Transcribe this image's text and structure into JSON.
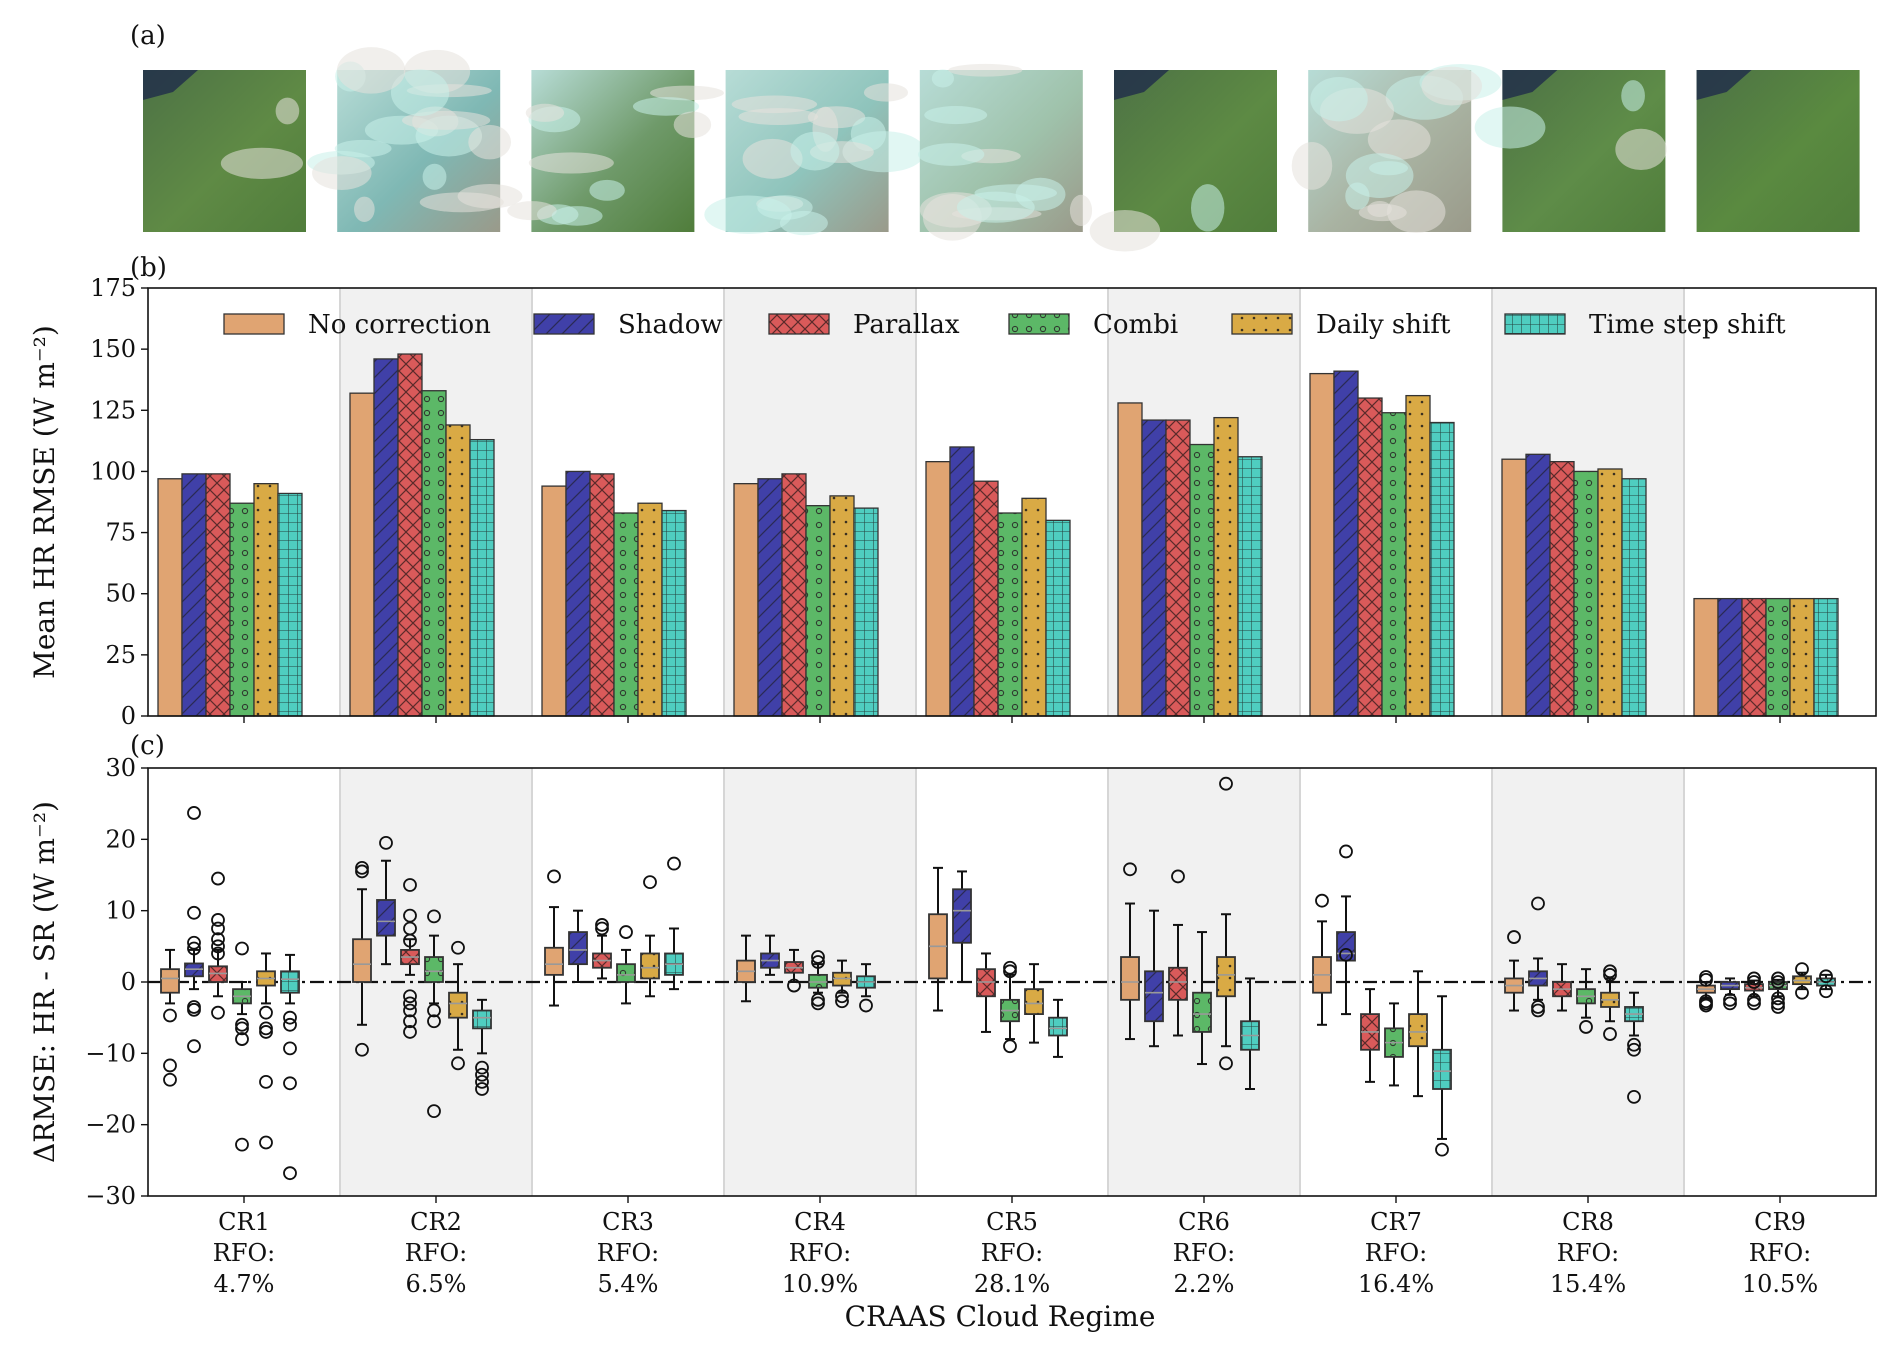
{
  "panels": {
    "a": "(a)",
    "b": "(b)",
    "c": "(c)"
  },
  "thumbnails": [
    {
      "id": "CR1",
      "base": "#5f8a45",
      "cloud": 0.1
    },
    {
      "id": "CR2",
      "base": "#7fb8b4",
      "cloud": 0.75
    },
    {
      "id": "CR3",
      "base": "#6f9a6a",
      "cloud": 0.45
    },
    {
      "id": "CR4",
      "base": "#8fc4bc",
      "cloud": 0.65
    },
    {
      "id": "CR5",
      "base": "#9fc2ab",
      "cloud": 0.55
    },
    {
      "id": "CR6",
      "base": "#5d8a44",
      "cloud": 0.08
    },
    {
      "id": "CR7",
      "base": "#a9b3a2",
      "cloud": 0.6
    },
    {
      "id": "CR8",
      "base": "#5e8c48",
      "cloud": 0.12
    },
    {
      "id": "CR9",
      "base": "#5a8a40",
      "cloud": 0.02
    }
  ],
  "legend": [
    {
      "label": "No correction",
      "color": "#e0a472",
      "pattern": "none"
    },
    {
      "label": "Shadow",
      "color": "#4040a8",
      "pattern": "diag"
    },
    {
      "label": "Parallax",
      "color": "#d95a5a",
      "pattern": "cross"
    },
    {
      "label": "Combi",
      "color": "#5cb867",
      "pattern": "circles"
    },
    {
      "label": "Daily shift",
      "color": "#d9aa45",
      "pattern": "dots"
    },
    {
      "label": "Time step shift",
      "color": "#4fcdc0",
      "pattern": "grid"
    }
  ],
  "chart_data": [
    {
      "type": "bar",
      "ylabel": "Mean HR RMSE (W m⁻²)",
      "ylim": [
        0,
        175
      ],
      "yticks": [
        0,
        25,
        50,
        75,
        100,
        125,
        150,
        175
      ],
      "categories": [
        "CR1",
        "CR2",
        "CR3",
        "CR4",
        "CR5",
        "CR6",
        "CR7",
        "CR8",
        "CR9"
      ],
      "series": [
        {
          "name": "No correction",
          "values": [
            97,
            132,
            94,
            95,
            104,
            128,
            140,
            105,
            48
          ]
        },
        {
          "name": "Shadow",
          "values": [
            99,
            146,
            100,
            97,
            110,
            121,
            141,
            107,
            48
          ]
        },
        {
          "name": "Parallax",
          "values": [
            99,
            148,
            99,
            99,
            96,
            121,
            130,
            104,
            48
          ]
        },
        {
          "name": "Combi",
          "values": [
            87,
            133,
            83,
            86,
            83,
            111,
            124,
            100,
            48
          ]
        },
        {
          "name": "Daily shift",
          "values": [
            95,
            119,
            87,
            90,
            89,
            122,
            131,
            101,
            48
          ]
        },
        {
          "name": "Time step shift",
          "values": [
            91,
            113,
            84,
            85,
            80,
            106,
            120,
            97,
            48
          ]
        }
      ],
      "grid": false,
      "legend_position": "top",
      "shaded_categories": [
        "CR2",
        "CR4",
        "CR6",
        "CR8"
      ]
    },
    {
      "type": "box",
      "ylabel": "ΔRMSE: HR - SR (W m⁻²)",
      "xlabel": "CRAAS Cloud Regime",
      "ylim": [
        -30,
        30
      ],
      "yticks": [
        -30,
        -20,
        -10,
        0,
        10,
        20,
        30
      ],
      "reference_line": 0,
      "categories": [
        "CR1",
        "CR2",
        "CR3",
        "CR4",
        "CR5",
        "CR6",
        "CR7",
        "CR8",
        "CR9"
      ],
      "category_labels": [
        [
          "CR1",
          "RFO:",
          "4.7%"
        ],
        [
          "CR2",
          "RFO:",
          "6.5%"
        ],
        [
          "CR3",
          "RFO:",
          "5.4%"
        ],
        [
          "CR4",
          "RFO:",
          "10.9%"
        ],
        [
          "CR5",
          "RFO:",
          "28.1%"
        ],
        [
          "CR6",
          "RFO:",
          "2.2%"
        ],
        [
          "CR7",
          "RFO:",
          "16.4%"
        ],
        [
          "CR8",
          "RFO:",
          "15.4%"
        ],
        [
          "CR9",
          "RFO:",
          "10.5%"
        ]
      ],
      "boxes": [
        [
          {
            "q1": -1.5,
            "med": 0.5,
            "q3": 1.8,
            "wlo": -3,
            "whi": 4.5,
            "fl": [
              -4.7,
              -11.7,
              -13.7
            ]
          },
          {
            "q1": 0.8,
            "med": 1.8,
            "q3": 2.6,
            "wlo": -1,
            "whi": 4.5,
            "fl": [
              23.7,
              9.7,
              5.5,
              4.7,
              -3.5,
              -3.9,
              -9
            ]
          },
          {
            "q1": 0,
            "med": 1.2,
            "q3": 2.2,
            "wlo": -2,
            "whi": 4.5,
            "fl": [
              14.5,
              8.7,
              7.5,
              6,
              5,
              4,
              -4.3
            ]
          },
          {
            "q1": -3,
            "med": -2,
            "q3": -1,
            "wlo": -4.5,
            "whi": 0,
            "fl": [
              4.7,
              -6,
              -6.5,
              -8,
              -22.8
            ]
          },
          {
            "q1": -0.5,
            "med": 0.5,
            "q3": 1.5,
            "wlo": -3,
            "whi": 4,
            "fl": [
              -4.3,
              -6.5,
              -7,
              -14,
              -22.5
            ]
          },
          {
            "q1": -1.5,
            "med": 0.4,
            "q3": 1.5,
            "wlo": -3,
            "whi": 3.8,
            "fl": [
              -5,
              -6,
              -9.3,
              -14.2,
              -26.8
            ]
          }
        ],
        [
          {
            "q1": 0,
            "med": 2.5,
            "q3": 6,
            "wlo": -6,
            "whi": 13,
            "fl": [
              16,
              15.5,
              -9.5
            ]
          },
          {
            "q1": 6.5,
            "med": 8.5,
            "q3": 11.5,
            "wlo": 2.5,
            "whi": 17,
            "fl": [
              19.5
            ]
          },
          {
            "q1": 2.5,
            "med": 3.5,
            "q3": 4.5,
            "wlo": 1,
            "whi": 6,
            "fl": [
              13.6,
              9.3,
              7.5,
              5.8,
              -2,
              -3,
              -4,
              -5.5,
              -7
            ]
          },
          {
            "q1": 0,
            "med": 1.5,
            "q3": 3.5,
            "wlo": -3,
            "whi": 6.5,
            "fl": [
              9.2,
              -4,
              -5.5,
              -18.1
            ]
          },
          {
            "q1": -5,
            "med": -3,
            "q3": -1.5,
            "wlo": -9.5,
            "whi": 2.5,
            "fl": [
              4.8,
              -11.4
            ]
          },
          {
            "q1": -6.5,
            "med": -5,
            "q3": -4,
            "wlo": -10,
            "whi": -2.5,
            "fl": [
              -12,
              -13,
              -14,
              -15
            ]
          }
        ],
        [
          {
            "q1": 1,
            "med": 2.5,
            "q3": 4.8,
            "wlo": -3.3,
            "whi": 10.5,
            "fl": [
              14.8
            ]
          },
          {
            "q1": 2.5,
            "med": 4.5,
            "q3": 7,
            "wlo": 0,
            "whi": 10,
            "fl": []
          },
          {
            "q1": 2,
            "med": 3,
            "q3": 4,
            "wlo": 0.5,
            "whi": 6.5,
            "fl": [
              8,
              7.5
            ]
          },
          {
            "q1": 0,
            "med": 1,
            "q3": 2.5,
            "wlo": -3,
            "whi": 4.5,
            "fl": [
              7
            ]
          },
          {
            "q1": 0.5,
            "med": 2,
            "q3": 4,
            "wlo": -2,
            "whi": 6.5,
            "fl": [
              14
            ]
          },
          {
            "q1": 1,
            "med": 2.5,
            "q3": 4,
            "wlo": -1,
            "whi": 7.5,
            "fl": [
              16.6
            ]
          }
        ],
        [
          {
            "q1": 0,
            "med": 1.5,
            "q3": 3,
            "wlo": -2.7,
            "whi": 6.5,
            "fl": []
          },
          {
            "q1": 2,
            "med": 3,
            "q3": 4,
            "wlo": 1,
            "whi": 6.5,
            "fl": []
          },
          {
            "q1": 1.3,
            "med": 2,
            "q3": 2.8,
            "wlo": 0,
            "whi": 4.5,
            "fl": [
              -0.5
            ]
          },
          {
            "q1": -0.8,
            "med": 0,
            "q3": 1,
            "wlo": -1.5,
            "whi": 2.5,
            "fl": [
              3.5,
              2.8,
              -2.5,
              -3
            ]
          },
          {
            "q1": -0.5,
            "med": 0.5,
            "q3": 1.3,
            "wlo": -1.5,
            "whi": 3,
            "fl": [
              -2,
              -2.7
            ]
          },
          {
            "q1": -0.8,
            "med": 0,
            "q3": 0.8,
            "wlo": -2,
            "whi": 2.5,
            "fl": [
              -3.3
            ]
          }
        ],
        [
          {
            "q1": 0.5,
            "med": 5,
            "q3": 9.5,
            "wlo": -4,
            "whi": 16,
            "fl": []
          },
          {
            "q1": 5.5,
            "med": 10,
            "q3": 13,
            "wlo": 0,
            "whi": 15.5,
            "fl": []
          },
          {
            "q1": -2,
            "med": 0,
            "q3": 1.8,
            "wlo": -7,
            "whi": 4,
            "fl": []
          },
          {
            "q1": -5.5,
            "med": -4,
            "q3": -2.5,
            "wlo": -8,
            "whi": 1,
            "fl": [
              2,
              1.5,
              -9
            ]
          },
          {
            "q1": -4.5,
            "med": -3,
            "q3": -1,
            "wlo": -8.5,
            "whi": 2.5,
            "fl": []
          },
          {
            "q1": -7.5,
            "med": -6.5,
            "q3": -5,
            "wlo": -10.5,
            "whi": -2.5,
            "fl": []
          }
        ],
        [
          {
            "q1": -2.5,
            "med": 0,
            "q3": 3.5,
            "wlo": -8,
            "whi": 11,
            "fl": [
              15.8
            ]
          },
          {
            "q1": -5.5,
            "med": -1.5,
            "q3": 1.5,
            "wlo": -9,
            "whi": 10,
            "fl": []
          },
          {
            "q1": -2.5,
            "med": 0,
            "q3": 2,
            "wlo": -7.5,
            "whi": 8,
            "fl": [
              14.8
            ]
          },
          {
            "q1": -7,
            "med": -4.5,
            "q3": -1.5,
            "wlo": -11.5,
            "whi": 7,
            "fl": []
          },
          {
            "q1": -2,
            "med": 1,
            "q3": 3.5,
            "wlo": -9,
            "whi": 9.5,
            "fl": [
              27.8,
              -11.4
            ]
          },
          {
            "q1": -9.5,
            "med": -7.5,
            "q3": -5.5,
            "wlo": -15,
            "whi": 0.5,
            "fl": []
          }
        ],
        [
          {
            "q1": -1.5,
            "med": 1,
            "q3": 3.5,
            "wlo": -6,
            "whi": 8.5,
            "fl": [
              11.4
            ]
          },
          {
            "q1": 3,
            "med": 4,
            "q3": 7,
            "wlo": -4.5,
            "whi": 12,
            "fl": [
              18.3,
              3.8
            ]
          },
          {
            "q1": -9.5,
            "med": -7,
            "q3": -4.5,
            "wlo": -14,
            "whi": -1,
            "fl": []
          },
          {
            "q1": -10.5,
            "med": -8.5,
            "q3": -6.5,
            "wlo": -14.5,
            "whi": -3,
            "fl": []
          },
          {
            "q1": -9,
            "med": -7,
            "q3": -4.5,
            "wlo": -16,
            "whi": 1.5,
            "fl": []
          },
          {
            "q1": -15,
            "med": -12.5,
            "q3": -9.5,
            "wlo": -22,
            "whi": -2,
            "fl": [
              -23.5
            ]
          }
        ],
        [
          {
            "q1": -1.5,
            "med": -0.5,
            "q3": 0.5,
            "wlo": -4,
            "whi": 3,
            "fl": [
              6.3
            ]
          },
          {
            "q1": -0.5,
            "med": 0.5,
            "q3": 1.5,
            "wlo": -2.5,
            "whi": 3.3,
            "fl": [
              11,
              -3.5,
              -4
            ]
          },
          {
            "q1": -2,
            "med": -1,
            "q3": 0,
            "wlo": -4,
            "whi": 2.5,
            "fl": []
          },
          {
            "q1": -3,
            "med": -2,
            "q3": -1,
            "wlo": -5,
            "whi": 1.8,
            "fl": [
              -6.3
            ]
          },
          {
            "q1": -3.5,
            "med": -2.5,
            "q3": -1.5,
            "wlo": -5.5,
            "whi": 0.5,
            "fl": [
              1.5,
              1,
              -7.3
            ]
          },
          {
            "q1": -5.5,
            "med": -4.5,
            "q3": -3.5,
            "wlo": -7.5,
            "whi": -1.5,
            "fl": [
              -8.8,
              -9.5,
              -16.1
            ]
          }
        ],
        [
          {
            "q1": -1.5,
            "med": -1,
            "q3": -0.5,
            "wlo": -2.3,
            "whi": 0,
            "fl": [
              0.7,
              0.3,
              -2.7,
              -3,
              -3.3
            ]
          },
          {
            "q1": -1,
            "med": -0.5,
            "q3": 0,
            "wlo": -1.8,
            "whi": 0.5,
            "fl": [
              -2.5,
              -3
            ]
          },
          {
            "q1": -1.2,
            "med": -0.8,
            "q3": -0.3,
            "wlo": -2,
            "whi": 0.2,
            "fl": [
              0.5,
              0,
              -2.5,
              -3
            ]
          },
          {
            "q1": -1,
            "med": -0.5,
            "q3": 0,
            "wlo": -2,
            "whi": 0.3,
            "fl": [
              0.5,
              0,
              -2.3,
              -3,
              -3.5
            ]
          },
          {
            "q1": -0.3,
            "med": 0.2,
            "q3": 0.8,
            "wlo": -1,
            "whi": 1.3,
            "fl": [
              1.8,
              -1.5
            ]
          },
          {
            "q1": -0.5,
            "med": 0,
            "q3": 0.5,
            "wlo": -1,
            "whi": 1,
            "fl": [
              0.8,
              -1.3
            ]
          }
        ]
      ]
    }
  ]
}
